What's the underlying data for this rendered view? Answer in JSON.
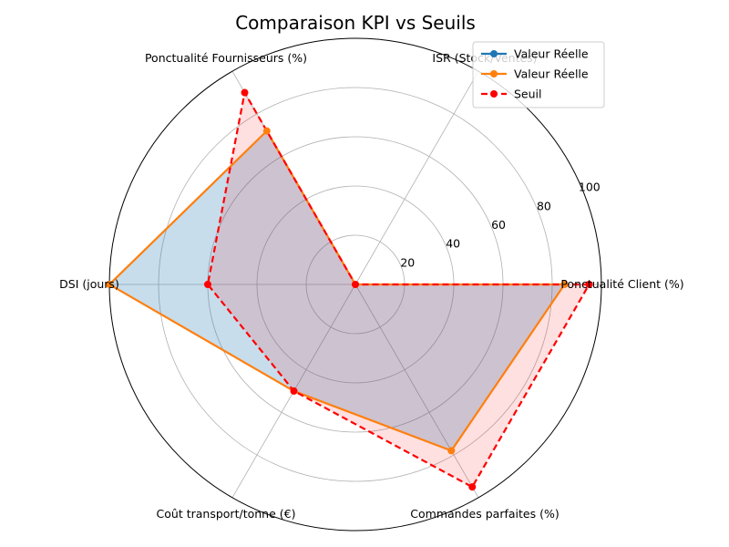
{
  "chart_data": {
    "type": "radar",
    "title": "Comparaison KPI vs Seuils",
    "categories": [
      "Ponctualité Client (%)",
      "ISR (Stock/Ventes)",
      "Ponctualité Fournisseurs (%)",
      "DSI (jours)",
      "Coût transport/tonne (€)",
      "Commandes parfaites (%)"
    ],
    "rlim": [
      0,
      100
    ],
    "rticks": [
      20,
      40,
      60,
      80,
      100
    ],
    "grid": true,
    "legend_position": "upper-right",
    "series": [
      {
        "name": "Valeur Réelle",
        "color": "#1f77b4",
        "line_style": "solid",
        "marker": "circle",
        "fill": true,
        "values": [
          85,
          0,
          72,
          100,
          50,
          78
        ]
      },
      {
        "name": "Valeur Réelle",
        "color": "#ff7f0e",
        "line_style": "solid",
        "marker": "circle",
        "fill": false,
        "values": [
          85,
          0,
          72,
          100,
          50,
          78
        ]
      },
      {
        "name": "Seuil",
        "color": "#ff0000",
        "line_style": "dashed",
        "marker": "circle",
        "fill": true,
        "values": [
          95,
          0,
          90,
          60,
          50,
          95
        ]
      }
    ]
  }
}
